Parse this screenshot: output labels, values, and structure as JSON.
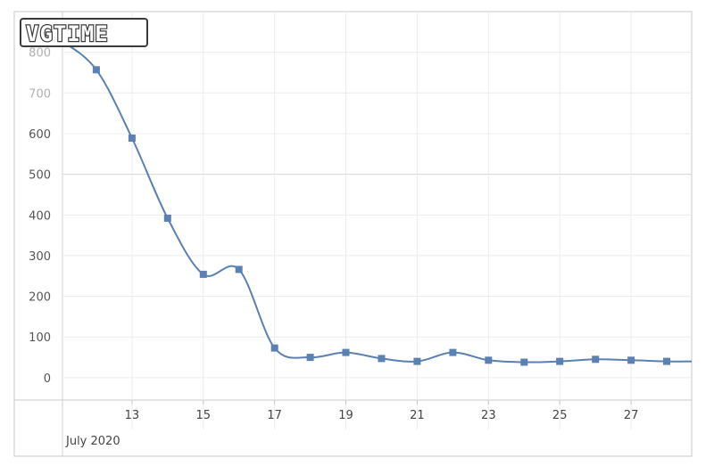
{
  "watermark": {
    "text": "VGTIME"
  },
  "chart_data": {
    "type": "line",
    "x_unit": "day",
    "period_label": "July 2020",
    "x": [
      11,
      12,
      13,
      14,
      15,
      16,
      17,
      18,
      19,
      20,
      21,
      22,
      23,
      24,
      25,
      26,
      27,
      28,
      28.7
    ],
    "series": [
      {
        "values": [
          830,
          757,
          589,
          392,
          254,
          266,
          73,
          50,
          62,
          47,
          40,
          62,
          43,
          38,
          40,
          45,
          43,
          40,
          40
        ],
        "color": "#5b80b2",
        "marker": "square"
      }
    ],
    "xlim": [
      11.05,
      28.7
    ],
    "ylim": [
      -55,
      900
    ],
    "y_ticks": [
      0,
      100,
      200,
      300,
      400,
      500,
      600,
      700,
      800
    ],
    "x_ticks": [
      13,
      15,
      17,
      19,
      21,
      23,
      25,
      27
    ],
    "x_tick_labels": [
      "13",
      "15",
      "17",
      "19",
      "21",
      "23",
      "25",
      "27"
    ],
    "grid": true,
    "legend": "none",
    "title": "",
    "xlabel": "",
    "ylabel": ""
  }
}
